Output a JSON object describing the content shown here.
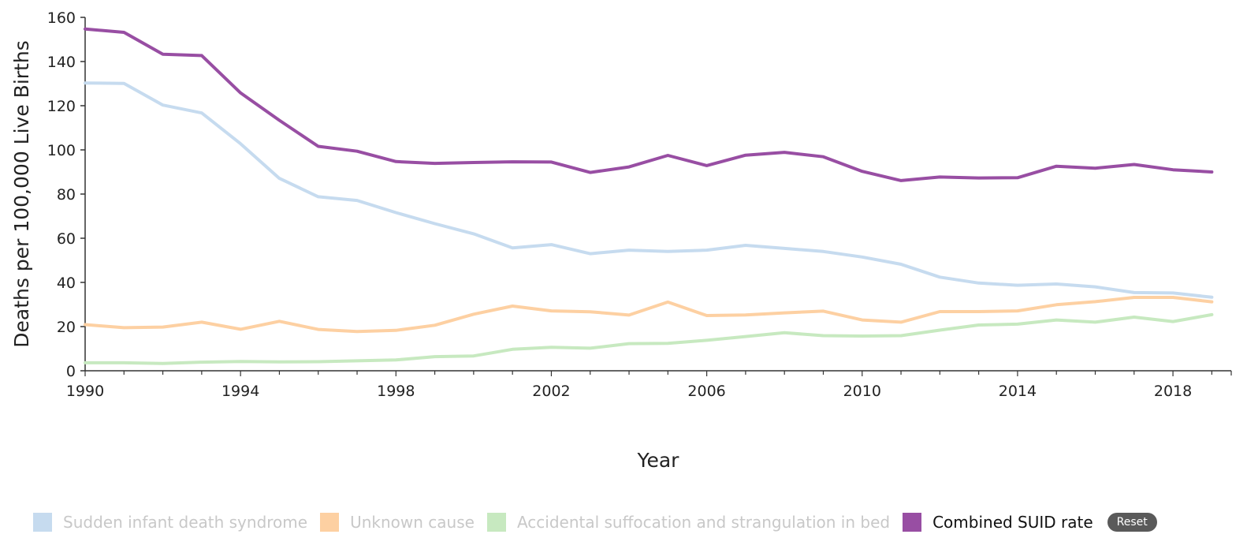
{
  "chart_data": {
    "type": "line",
    "xlabel": "Year",
    "ylabel": "Deaths per 100,000 Live Births",
    "xlim": [
      1990,
      2019.5
    ],
    "ylim": [
      0,
      160
    ],
    "x_ticks": [
      1990,
      1994,
      1998,
      2002,
      2006,
      2010,
      2014,
      2018
    ],
    "y_ticks": [
      0,
      20,
      40,
      60,
      80,
      100,
      120,
      140,
      160
    ],
    "x": [
      1990,
      1991,
      1992,
      1993,
      1994,
      1995,
      1996,
      1997,
      1998,
      1999,
      2000,
      2001,
      2002,
      2003,
      2004,
      2005,
      2006,
      2007,
      2008,
      2009,
      2010,
      2011,
      2012,
      2013,
      2014,
      2015,
      2016,
      2017,
      2018,
      2019
    ],
    "series": [
      {
        "name": "Sudden infant death syndrome",
        "color": "#c6dbef",
        "active": false,
        "values": [
          130.3,
          130.1,
          120.3,
          116.7,
          102.8,
          87.1,
          78.8,
          77.1,
          71.6,
          66.6,
          62.0,
          55.6,
          57.1,
          53.0,
          54.6,
          54.0,
          54.6,
          56.8,
          55.4,
          54.0,
          51.5,
          48.2,
          42.4,
          39.7,
          38.7,
          39.3,
          38.0,
          35.4,
          35.2,
          33.3
        ]
      },
      {
        "name": "Unknown cause",
        "color": "#fdd0a2",
        "active": false,
        "values": [
          20.9,
          19.5,
          19.8,
          22.0,
          18.8,
          22.4,
          18.7,
          17.8,
          18.3,
          20.6,
          25.6,
          29.3,
          27.1,
          26.7,
          25.2,
          31.1,
          25.0,
          25.3,
          26.2,
          27.0,
          23.0,
          22.0,
          26.8,
          26.8,
          27.1,
          29.9,
          31.3,
          33.2,
          33.2,
          31.2
        ]
      },
      {
        "name": "Accidental suffocation and strangulation in bed",
        "color": "#c7e9c0",
        "active": false,
        "values": [
          3.6,
          3.6,
          3.3,
          3.9,
          4.2,
          4.0,
          4.1,
          4.5,
          4.9,
          6.4,
          6.7,
          9.7,
          10.6,
          10.2,
          12.3,
          12.4,
          13.8,
          15.5,
          17.2,
          15.9,
          15.7,
          15.9,
          18.4,
          20.7,
          21.1,
          23.0,
          22.0,
          24.3,
          22.3,
          25.4
        ]
      },
      {
        "name": "Combined SUID rate",
        "color": "#984ea3",
        "active": true,
        "values": [
          154.7,
          153.2,
          143.3,
          142.7,
          125.8,
          113.4,
          101.6,
          99.4,
          94.7,
          93.9,
          94.3,
          94.6,
          94.5,
          89.8,
          92.3,
          97.5,
          92.9,
          97.6,
          98.9,
          96.9,
          90.3,
          86.1,
          87.7,
          87.3,
          87.4,
          92.6,
          91.7,
          93.4,
          91.0,
          90.0
        ]
      }
    ]
  },
  "legend": {
    "items": [
      {
        "label": "Sudden infant death syndrome",
        "color": "#c6dbef",
        "active": false
      },
      {
        "label": "Unknown cause",
        "color": "#fdd0a2",
        "active": false
      },
      {
        "label": "Accidental suffocation and strangulation in bed",
        "color": "#c7e9c0",
        "active": false
      },
      {
        "label": "Combined SUID rate",
        "color": "#984ea3",
        "active": true
      }
    ],
    "reset_label": "Reset"
  }
}
